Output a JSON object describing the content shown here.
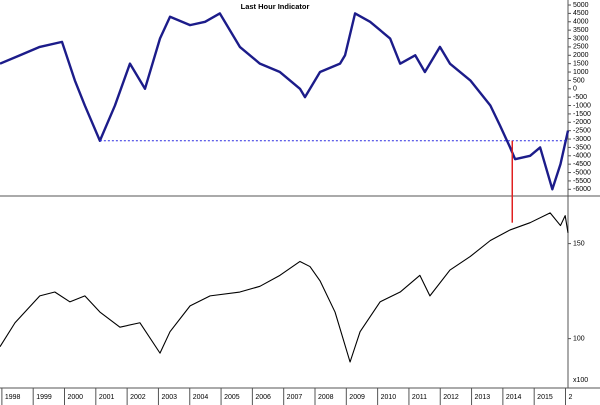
{
  "chart_data": [
    {
      "type": "line",
      "title": "Last Hour Indicator",
      "color": "#1c1c8a",
      "xlim": [
        1997.94,
        2016.08
      ],
      "ylim": [
        -6400,
        5300
      ],
      "yticks": [
        5000,
        4500,
        4000,
        3500,
        3000,
        2500,
        2000,
        1500,
        1000,
        500,
        0,
        -500,
        -1000,
        -1500,
        -2000,
        -2500,
        -3000,
        -3500,
        -4000,
        -4500,
        -5000,
        -5500,
        -6000
      ],
      "x": [
        1997.94,
        1998.58,
        1999.21,
        1999.92,
        2000.33,
        2000.65,
        2001.13,
        2001.61,
        2002.09,
        2002.57,
        2003.05,
        2003.37,
        2004.01,
        2004.49,
        2004.96,
        2005.6,
        2006.24,
        2006.88,
        2007.52,
        2007.68,
        2008.16,
        2008.8,
        2008.96,
        2009.28,
        2009.76,
        2010.4,
        2010.72,
        2011.2,
        2011.51,
        2011.99,
        2012.31,
        2012.96,
        2013.6,
        2013.91,
        2014.23,
        2014.39,
        2014.87,
        2015.19,
        2015.58,
        2015.84,
        2016.08
      ],
      "values": [
        1500,
        2000,
        2500,
        2800,
        500,
        -1000,
        -3100,
        -1000,
        1500,
        0,
        3000,
        4300,
        3800,
        4000,
        4500,
        2500,
        1500,
        1000,
        0,
        -500,
        1000,
        1500,
        2000,
        4500,
        4000,
        3000,
        1500,
        2000,
        1000,
        2500,
        1500,
        500,
        -1000,
        -2200,
        -3500,
        -4200,
        -4000,
        -3500,
        -6000,
        -4500,
        -2500
      ],
      "reference_y": -3100,
      "reference_y_color": "#2a2ae0",
      "reference_x": 2014.3,
      "reference_x_color": "#e02020"
    },
    {
      "type": "line",
      "color": "#000000",
      "log_scale": true,
      "axis_note": "x100",
      "xlim": [
        1997.94,
        2016.08
      ],
      "ylim": [
        81,
        183
      ],
      "yticks": [
        150,
        100
      ],
      "xticks": [
        1998,
        1999,
        2000,
        2001,
        2002,
        2003,
        2004,
        2005,
        2006,
        2007,
        2008,
        2009,
        2010,
        2011,
        2012,
        2013,
        2014,
        2015,
        {
          "value": 2016,
          "label": "2"
        }
      ],
      "x": [
        1997.94,
        1998.42,
        1999.21,
        1999.69,
        2000.17,
        2000.65,
        2001.13,
        2001.77,
        2002.41,
        2003.05,
        2003.37,
        2004.01,
        2004.65,
        2005.6,
        2006.24,
        2006.88,
        2007.52,
        2007.84,
        2008.16,
        2008.64,
        2009.12,
        2009.44,
        2010.08,
        2010.72,
        2011.35,
        2011.67,
        2012.31,
        2012.96,
        2013.6,
        2014.23,
        2014.87,
        2015.51,
        2015.84,
        2015.99,
        2016.08
      ],
      "values": [
        96.6,
        107,
        120,
        122,
        117,
        120,
        112,
        105,
        107,
        94,
        103,
        115,
        120,
        122,
        125,
        131,
        139,
        136,
        128,
        112,
        90.5,
        103,
        117,
        122,
        131,
        120,
        134,
        142,
        152,
        159,
        164,
        171,
        162,
        169,
        157
      ]
    }
  ]
}
